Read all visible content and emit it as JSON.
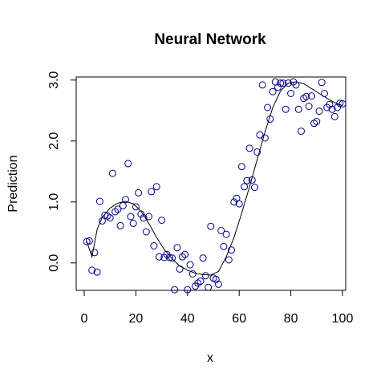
{
  "chart_data": {
    "type": "scatter",
    "title": "Neural Network",
    "xlabel": "x",
    "ylabel": "Prediction",
    "xlim": [
      0,
      100
    ],
    "ylim": [
      -0.45,
      3.05
    ],
    "xticks": [
      0,
      20,
      40,
      60,
      80,
      100
    ],
    "xtick_labels": [
      "0",
      "20",
      "40",
      "60",
      "80",
      "100"
    ],
    "yticks": [
      0,
      1,
      2,
      3
    ],
    "ytick_labels": [
      "0.0",
      "1.0",
      "2.0",
      "3.0"
    ],
    "grid": false,
    "point_color": "#00008b",
    "line_color": "#000000",
    "points": {
      "x": [
        1,
        2,
        3,
        4,
        5,
        6,
        7,
        8,
        9,
        10,
        11,
        12,
        13,
        14,
        15,
        16,
        17,
        18,
        19,
        20,
        21,
        22,
        23,
        24,
        25,
        26,
        27,
        28,
        29,
        30,
        31,
        32,
        33,
        34,
        35,
        36,
        37,
        38,
        39,
        40,
        41,
        42,
        43,
        44,
        45,
        46,
        47,
        48,
        49,
        50,
        51,
        52,
        53,
        54,
        55,
        56,
        57,
        58,
        59,
        60,
        61,
        62,
        63,
        64,
        65,
        66,
        67,
        68,
        69,
        70,
        71,
        72,
        73,
        74,
        75,
        76,
        77,
        78,
        79,
        80,
        81,
        82,
        83,
        84,
        85,
        86,
        87,
        88,
        89,
        90,
        91,
        92,
        93,
        94,
        95,
        96,
        97,
        98,
        99,
        100
      ],
      "y": [
        0.35,
        0.36,
        -0.12,
        0.17,
        -0.15,
        1.01,
        0.69,
        0.78,
        0.77,
        0.74,
        1.47,
        0.84,
        0.88,
        0.61,
        0.94,
        1.04,
        1.63,
        0.76,
        0.65,
        0.92,
        1.15,
        0.8,
        0.74,
        0.51,
        0.76,
        1.17,
        0.28,
        1.25,
        0.1,
        0.7,
        0.09,
        0.14,
        0.09,
        0.08,
        -0.44,
        0.25,
        -0.1,
        0.1,
        0.14,
        -0.44,
        -0.03,
        -0.18,
        -0.38,
        -0.33,
        -0.3,
        0.08,
        -0.21,
        -0.4,
        0.6,
        -0.25,
        -0.27,
        -0.35,
        0.53,
        0.27,
        0.47,
        0.05,
        0.21,
        1.0,
        1.06,
        0.97,
        1.58,
        1.25,
        1.35,
        1.88,
        1.36,
        1.24,
        1.82,
        2.1,
        2.92,
        2.05,
        2.55,
        2.36,
        2.81,
        2.97,
        2.88,
        2.95,
        2.95,
        2.52,
        2.95,
        2.78,
        2.97,
        2.92,
        2.52,
        2.16,
        2.7,
        2.73,
        2.57,
        2.74,
        2.29,
        2.32,
        2.49,
        2.96,
        2.78,
        2.55,
        2.6,
        2.52,
        2.4,
        2.55,
        2.62,
        2.61
      ]
    },
    "fit_line": {
      "x": [
        1,
        3,
        5,
        7,
        10,
        13,
        16,
        19,
        22,
        25,
        28,
        31,
        34,
        37,
        40,
        43,
        46,
        49,
        52,
        55,
        58,
        61,
        64,
        67,
        70,
        73,
        76,
        79,
        82,
        85,
        88,
        91,
        94,
        97,
        100
      ],
      "y": [
        0.35,
        0.1,
        0.55,
        0.75,
        0.9,
        0.98,
        1.01,
        0.97,
        0.85,
        0.65,
        0.42,
        0.22,
        0.07,
        -0.05,
        -0.12,
        -0.17,
        -0.19,
        -0.2,
        -0.14,
        0.1,
        0.42,
        0.82,
        1.25,
        1.7,
        2.15,
        2.55,
        2.82,
        2.95,
        2.97,
        2.94,
        2.86,
        2.78,
        2.7,
        2.63,
        2.58
      ]
    }
  }
}
